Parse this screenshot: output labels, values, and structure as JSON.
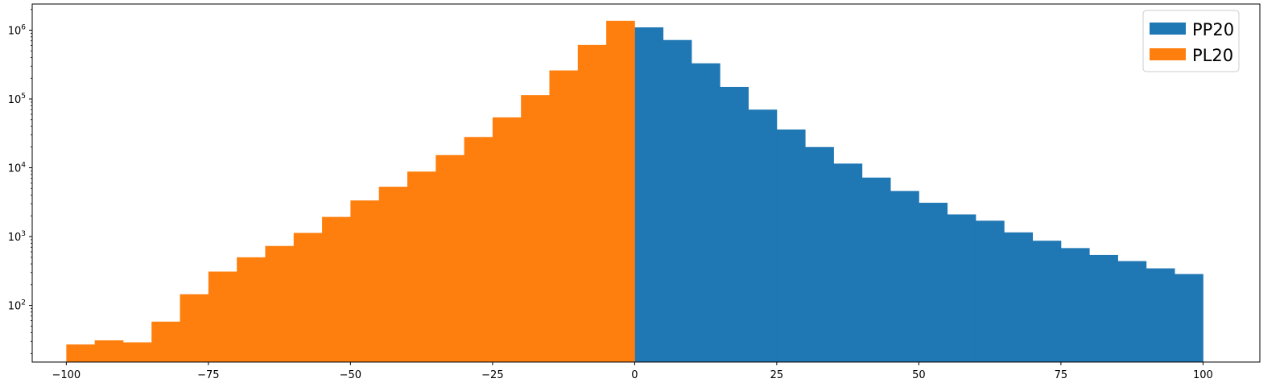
{
  "chart_data": {
    "type": "bar",
    "title": "",
    "xlabel": "",
    "ylabel": "",
    "y_scale": "log",
    "xlim": [
      -106,
      110
    ],
    "ylim": [
      15,
      2400000
    ],
    "grid": false,
    "legend_position": "top-right",
    "bin_width": 5,
    "x_ticks": [
      {
        "value": -100,
        "label": "−100"
      },
      {
        "value": -75,
        "label": "−75"
      },
      {
        "value": -50,
        "label": "−50"
      },
      {
        "value": -25,
        "label": "−25"
      },
      {
        "value": 0,
        "label": "0"
      },
      {
        "value": 25,
        "label": "25"
      },
      {
        "value": 50,
        "label": "50"
      },
      {
        "value": 75,
        "label": "75"
      },
      {
        "value": 100,
        "label": "100"
      }
    ],
    "y_ticks": [
      {
        "value": 100,
        "base": "10",
        "exp": "2"
      },
      {
        "value": 1000,
        "base": "10",
        "exp": "3"
      },
      {
        "value": 10000,
        "base": "10",
        "exp": "4"
      },
      {
        "value": 100000,
        "base": "10",
        "exp": "5"
      },
      {
        "value": 1000000,
        "base": "10",
        "exp": "6"
      }
    ],
    "series": [
      {
        "name": "PP20",
        "color": "#1f77b4",
        "bin_edges": [
          0,
          5,
          10,
          15,
          20,
          25,
          30,
          35,
          40,
          45,
          50,
          55,
          60,
          65,
          70,
          75,
          80,
          85,
          90,
          95,
          100
        ],
        "values": [
          1100000,
          720000,
          330000,
          150000,
          70000,
          36000,
          20000,
          11500,
          7200,
          4600,
          3100,
          2100,
          1700,
          1150,
          870,
          680,
          540,
          440,
          345,
          285
        ]
      },
      {
        "name": "PL20",
        "color": "#ff7f0e",
        "bin_edges": [
          -100,
          -95,
          -90,
          -85,
          -80,
          -75,
          -70,
          -65,
          -60,
          -55,
          -50,
          -45,
          -40,
          -35,
          -30,
          -25,
          -20,
          -15,
          -10,
          -5,
          0
        ],
        "values": [
          27,
          31,
          29,
          58,
          145,
          310,
          500,
          730,
          1130,
          1930,
          3350,
          5300,
          8800,
          15300,
          28000,
          54000,
          114000,
          260000,
          610000,
          1370000
        ]
      }
    ]
  }
}
